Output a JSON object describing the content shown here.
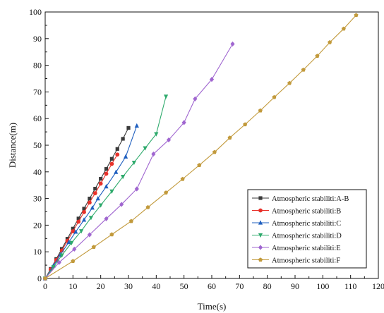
{
  "chart_data": {
    "type": "line",
    "title": "",
    "xlabel": "Time(s)",
    "ylabel": "Distance(m)",
    "xlim": [
      0,
      120
    ],
    "ylim": [
      0,
      100
    ],
    "xticks": [
      0,
      10,
      20,
      30,
      40,
      50,
      60,
      70,
      80,
      90,
      100,
      110,
      120
    ],
    "yticks": [
      0,
      10,
      20,
      30,
      40,
      50,
      60,
      70,
      80,
      90,
      100
    ],
    "grid": false,
    "legend_position": "bottom-right",
    "series": [
      {
        "name": "Atmospheric stabiliti:A-B",
        "color": "#3a3a3a",
        "marker": "square",
        "x": [
          0,
          2,
          4,
          6,
          8,
          10,
          12,
          14,
          16,
          18,
          20,
          22,
          24,
          26,
          28,
          30
        ],
        "y": [
          0,
          3.6,
          7.3,
          11.1,
          14.9,
          18.7,
          22.5,
          26.2,
          30.0,
          33.7,
          37.4,
          41.1,
          44.9,
          48.6,
          52.4,
          56.5
        ]
      },
      {
        "name": "Atmospheric stabiliti:B",
        "color": "#e8312a",
        "marker": "circle",
        "x": [
          0,
          2,
          4,
          6,
          8,
          10,
          12,
          14,
          16,
          18,
          20,
          22,
          24,
          26
        ],
        "y": [
          0,
          3.4,
          6.9,
          10.5,
          14.1,
          17.7,
          21.3,
          24.9,
          28.5,
          32.0,
          35.6,
          39.3,
          43.0,
          46.5
        ]
      },
      {
        "name": "Atmospheric stabiliti:C",
        "color": "#1f5fbf",
        "marker": "triangle-up",
        "x": [
          0,
          3,
          5.5,
          8.5,
          11,
          14,
          17,
          19,
          22,
          25.5,
          29,
          33
        ],
        "y": [
          0,
          4.8,
          8.9,
          13.6,
          17.5,
          22.0,
          26.5,
          30.0,
          34.5,
          39.9,
          45.7,
          57.3
        ]
      },
      {
        "name": "Atmospheric stabiliti:D",
        "color": "#2eaa6c",
        "marker": "triangle-down",
        "x": [
          0,
          3,
          6,
          9.5,
          13,
          16.5,
          20,
          24,
          28,
          32,
          36,
          40,
          43.5
        ],
        "y": [
          0,
          4.3,
          8.7,
          13.4,
          17.8,
          22.8,
          27.5,
          32.7,
          38.2,
          43.5,
          48.9,
          54.2,
          68.3
        ]
      },
      {
        "name": "Atmospheric stabiliti:E",
        "color": "#a066d0",
        "marker": "diamond",
        "x": [
          0,
          5,
          10.5,
          16,
          22,
          27.5,
          33,
          39,
          44.5,
          50,
          54,
          60,
          67.5
        ],
        "y": [
          0,
          6.0,
          11.0,
          16.4,
          22.4,
          27.8,
          33.6,
          46.7,
          52.0,
          58.5,
          67.4,
          74.7,
          88.0
        ]
      },
      {
        "name": "Atmospheric stabiliti:F",
        "color": "#c29a3c",
        "marker": "pentagon",
        "x": [
          0,
          10,
          17.5,
          24,
          31,
          37,
          43.5,
          49.5,
          55.5,
          61,
          66.5,
          72,
          77.5,
          82.5,
          88,
          93,
          98,
          102.5,
          107.5,
          112
        ],
        "y": [
          0,
          6.5,
          11.8,
          16.5,
          21.5,
          26.7,
          32.2,
          37.3,
          42.5,
          47.4,
          52.8,
          57.8,
          63.0,
          68.0,
          73.3,
          78.3,
          83.5,
          88.6,
          93.7,
          98.8
        ]
      }
    ]
  }
}
